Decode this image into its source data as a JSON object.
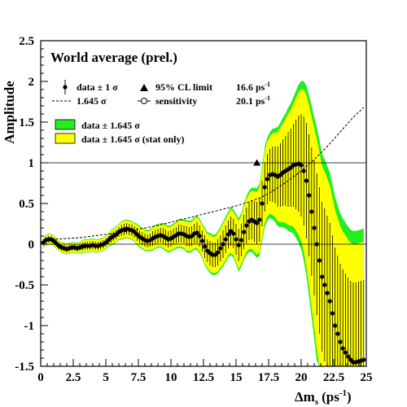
{
  "chart_data": {
    "type": "scatter",
    "title": "World average (prel.)",
    "xlabel": "Δm",
    "xlabel_sub": "s",
    "xlabel_unit": "(ps",
    "xlabel_sup": "-1",
    "xlabel_close": ")",
    "ylabel": "Amplitude",
    "xlim": [
      0,
      25
    ],
    "ylim": [
      -1.5,
      2.5
    ],
    "x_ticks": [
      "0",
      "2.5",
      "5",
      "7.5",
      "10",
      "12.5",
      "15",
      "17.5",
      "20",
      "22.5",
      "25"
    ],
    "x_tick_values": [
      0,
      2.5,
      5,
      7.5,
      10,
      12.5,
      15,
      17.5,
      20,
      22.5,
      25
    ],
    "y_ticks": [
      "-1.5",
      "-1",
      "-0.5",
      "0",
      "0.5",
      "1",
      "1.5",
      "2",
      "2.5"
    ],
    "y_tick_values": [
      -1.5,
      -1,
      -0.5,
      0,
      0.5,
      1,
      1.5,
      2,
      2.5
    ],
    "reference_lines": [
      0,
      1
    ],
    "legend": {
      "data_1sigma": "data ± 1 σ",
      "sigma_1645": "1.645 σ",
      "band_green": "data ± 1.645 σ",
      "band_yellow": "data ± 1.645 σ (stat only)",
      "limit_label": "95% CL limit",
      "limit_value": "16.6 ps",
      "limit_sup": "-1",
      "sensitivity_label": "sensitivity",
      "sensitivity_value": "20.1 ps",
      "sensitivity_sup": "-1"
    },
    "colors": {
      "green_band": "#22ee22",
      "yellow_band": "#ffff00",
      "points": "#000000"
    },
    "limit_marker": {
      "x": 16.6,
      "y": 1.0
    },
    "series": [
      {
        "name": "data ± 1 σ",
        "x": [
          0.2,
          0.4,
          0.6,
          0.8,
          1.0,
          1.2,
          1.4,
          1.6,
          1.8,
          2.0,
          2.2,
          2.4,
          2.6,
          2.8,
          3.0,
          3.2,
          3.4,
          3.6,
          3.8,
          4.0,
          4.2,
          4.4,
          4.6,
          4.8,
          5.0,
          5.2,
          5.4,
          5.6,
          5.8,
          6.0,
          6.2,
          6.4,
          6.6,
          6.8,
          7.0,
          7.2,
          7.4,
          7.6,
          7.8,
          8.0,
          8.2,
          8.4,
          8.6,
          8.8,
          9.0,
          9.2,
          9.4,
          9.6,
          9.8,
          10.0,
          10.2,
          10.4,
          10.6,
          10.8,
          11.0,
          11.2,
          11.4,
          11.6,
          11.8,
          12.0,
          12.2,
          12.4,
          12.6,
          12.8,
          13.0,
          13.2,
          13.4,
          13.6,
          13.8,
          14.0,
          14.2,
          14.4,
          14.6,
          14.8,
          15.0,
          15.2,
          15.4,
          15.6,
          15.8,
          16.0,
          16.2,
          16.4,
          16.6,
          16.8,
          17.0,
          17.2,
          17.4,
          17.6,
          17.8,
          18.0,
          18.2,
          18.4,
          18.6,
          18.8,
          19.0,
          19.2,
          19.4,
          19.6,
          19.8,
          20.0,
          20.2,
          20.4,
          20.6,
          20.8,
          21.0,
          21.2,
          21.4,
          21.6,
          21.8,
          22.0,
          22.2,
          22.4,
          22.6,
          22.8,
          23.0,
          23.2,
          23.4,
          23.6,
          23.8,
          24.0,
          24.2,
          24.4,
          24.6,
          24.8
        ],
        "y": [
          0.02,
          0.05,
          0.06,
          0.06,
          0.04,
          0.01,
          -0.02,
          -0.04,
          -0.05,
          -0.06,
          -0.05,
          -0.04,
          -0.04,
          -0.05,
          -0.04,
          -0.03,
          -0.02,
          -0.02,
          -0.02,
          -0.01,
          -0.02,
          -0.02,
          -0.01,
          0.0,
          0.02,
          0.05,
          0.08,
          0.1,
          0.12,
          0.15,
          0.17,
          0.18,
          0.19,
          0.18,
          0.17,
          0.15,
          0.12,
          0.09,
          0.07,
          0.05,
          0.04,
          0.05,
          0.07,
          0.09,
          0.1,
          0.11,
          0.1,
          0.08,
          0.06,
          0.07,
          0.09,
          0.11,
          0.13,
          0.13,
          0.12,
          0.1,
          0.09,
          0.1,
          0.13,
          0.14,
          0.1,
          0.04,
          -0.03,
          -0.08,
          -0.11,
          -0.13,
          -0.13,
          -0.1,
          -0.05,
          0.0,
          0.06,
          0.12,
          0.16,
          0.13,
          0.06,
          -0.01,
          0.05,
          0.15,
          0.23,
          0.28,
          0.3,
          0.28,
          0.26,
          0.3,
          0.5,
          0.7,
          0.8,
          0.85,
          0.86,
          0.85,
          0.83,
          0.85,
          0.88,
          0.9,
          0.92,
          0.94,
          0.97,
          0.98,
          0.99,
          0.97,
          0.9,
          0.78,
          0.6,
          0.4,
          0.2,
          0.0,
          -0.2,
          -0.4,
          -0.5,
          -0.6,
          -0.7,
          -0.85,
          -1.0,
          -1.1,
          -1.2,
          -1.28,
          -1.33,
          -1.38,
          -1.42,
          -1.45,
          -1.45,
          -1.44,
          -1.43,
          -1.42
        ],
        "err": [
          0.04,
          0.04,
          0.04,
          0.04,
          0.04,
          0.04,
          0.04,
          0.04,
          0.04,
          0.04,
          0.04,
          0.04,
          0.04,
          0.04,
          0.04,
          0.05,
          0.05,
          0.05,
          0.05,
          0.05,
          0.05,
          0.05,
          0.05,
          0.05,
          0.05,
          0.05,
          0.06,
          0.06,
          0.06,
          0.06,
          0.07,
          0.07,
          0.07,
          0.07,
          0.07,
          0.07,
          0.08,
          0.08,
          0.08,
          0.08,
          0.08,
          0.08,
          0.09,
          0.09,
          0.09,
          0.09,
          0.1,
          0.1,
          0.1,
          0.1,
          0.1,
          0.1,
          0.11,
          0.11,
          0.11,
          0.12,
          0.12,
          0.12,
          0.12,
          0.13,
          0.13,
          0.13,
          0.14,
          0.14,
          0.15,
          0.15,
          0.15,
          0.16,
          0.16,
          0.17,
          0.17,
          0.17,
          0.18,
          0.18,
          0.19,
          0.2,
          0.2,
          0.21,
          0.22,
          0.23,
          0.24,
          0.25,
          0.26,
          0.27,
          0.28,
          0.3,
          0.31,
          0.32,
          0.34,
          0.35,
          0.37,
          0.39,
          0.41,
          0.43,
          0.46,
          0.48,
          0.51,
          0.55,
          0.59,
          0.63,
          0.67,
          0.71,
          0.75,
          0.79,
          0.83,
          0.87,
          0.9,
          0.92,
          0.94,
          0.95,
          0.96,
          0.96,
          0.96,
          0.96,
          0.96,
          0.97,
          0.97,
          0.97,
          0.97,
          0.98,
          0.98,
          0.98,
          0.98,
          0.98
        ]
      },
      {
        "name": "1.645 σ",
        "x": [
          0.2,
          1.0,
          2.0,
          3.0,
          4.0,
          5.0,
          6.0,
          7.0,
          8.0,
          9.0,
          10.0,
          11.0,
          12.0,
          13.0,
          14.0,
          15.0,
          16.0,
          17.0,
          18.0,
          19.0,
          20.0,
          21.0,
          22.0,
          23.0,
          24.0,
          24.8
        ],
        "y": [
          0.05,
          0.06,
          0.07,
          0.08,
          0.1,
          0.12,
          0.14,
          0.17,
          0.2,
          0.23,
          0.27,
          0.31,
          0.35,
          0.39,
          0.43,
          0.47,
          0.52,
          0.58,
          0.67,
          0.78,
          0.9,
          1.04,
          1.2,
          1.38,
          1.56,
          1.68
        ]
      }
    ]
  }
}
